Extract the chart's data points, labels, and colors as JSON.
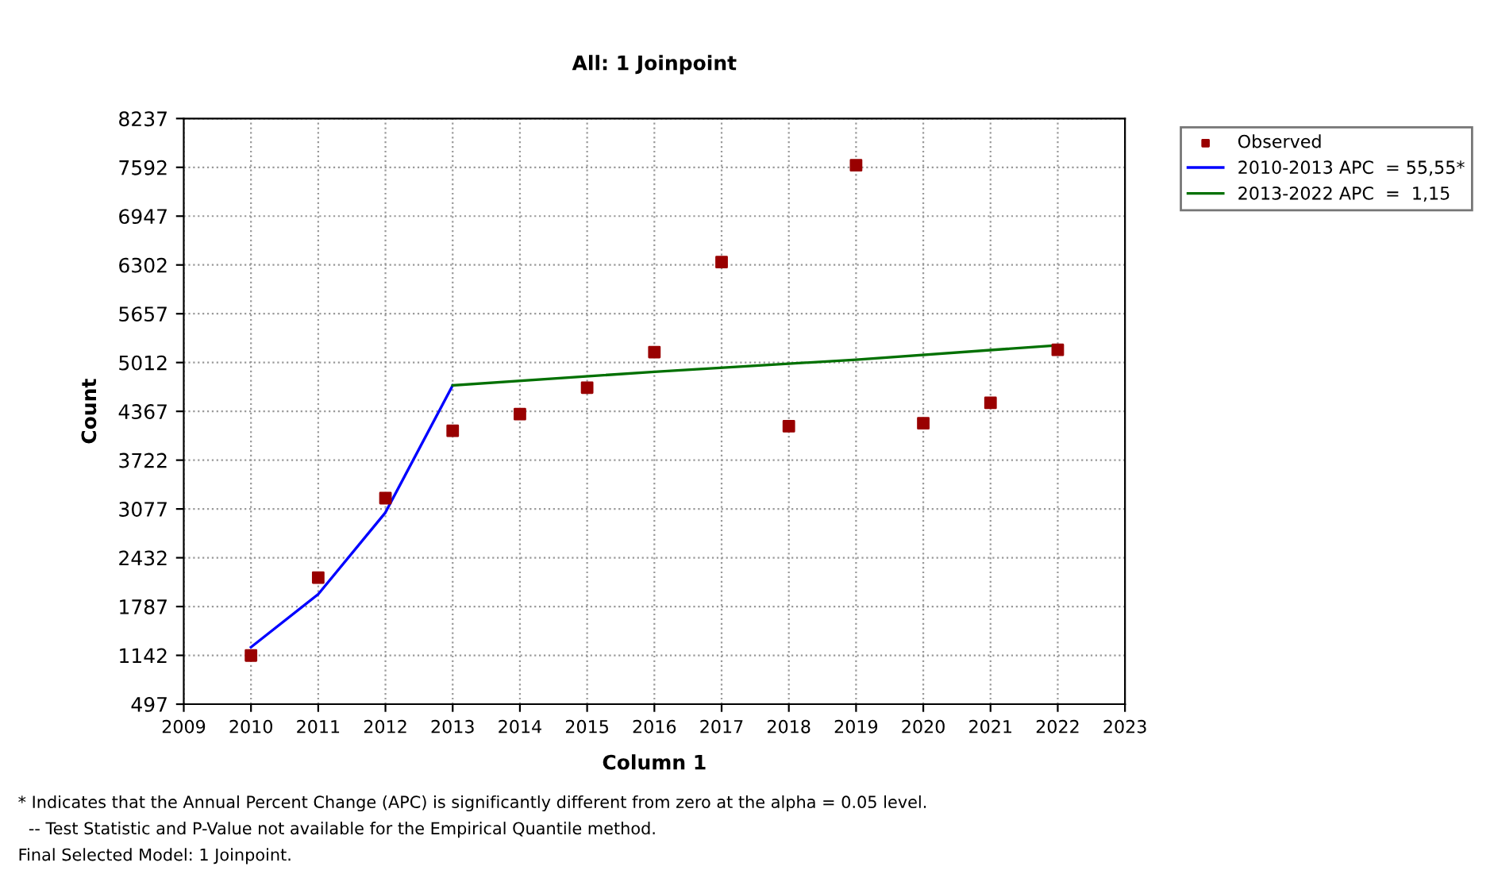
{
  "chart_data": {
    "type": "scatter",
    "title": "All: 1 Joinpoint",
    "xlabel": "Column 1",
    "ylabel": "Count",
    "xlim": [
      2009,
      2023
    ],
    "xticks": [
      2009,
      2010,
      2011,
      2012,
      2013,
      2014,
      2015,
      2016,
      2017,
      2018,
      2019,
      2020,
      2021,
      2022,
      2023
    ],
    "ylim": [
      497,
      8237
    ],
    "yticks": [
      497,
      1142,
      1787,
      2432,
      3077,
      3722,
      4367,
      5012,
      5657,
      6302,
      6947,
      7592,
      8237
    ],
    "grid": true,
    "legend": "top right",
    "series": [
      {
        "name": "Observed",
        "marker": "square",
        "color": "#990000",
        "x": [
          2010,
          2011,
          2012,
          2013,
          2014,
          2015,
          2016,
          2017,
          2018,
          2019,
          2020,
          2021,
          2022
        ],
        "values": [
          1140,
          2170,
          3220,
          4110,
          4330,
          4680,
          5150,
          6340,
          4170,
          7620,
          4210,
          4480,
          5180
        ]
      },
      {
        "name": "2010-2013 APC  = 55,55*",
        "type": "line",
        "marker": "none",
        "color": "#0000ff",
        "x": [
          2010,
          2011,
          2012,
          2013
        ],
        "values": [
          1250,
          1950,
          3030,
          4710
        ]
      },
      {
        "name": "2013-2022 APC  =  1,15",
        "type": "line",
        "marker": "none",
        "color": "#007000",
        "x": [
          2013,
          2016,
          2019,
          2022
        ],
        "values": [
          4710,
          4890,
          5050,
          5240
        ]
      }
    ],
    "annotations": [
      "* Indicates that the Annual Percent Change (APC) is significantly different from zero at the alpha = 0.05 level.",
      "  -- Test Statistic and P-Value not available for the Empirical Quantile method.",
      "Final Selected Model: 1 Joinpoint."
    ]
  }
}
